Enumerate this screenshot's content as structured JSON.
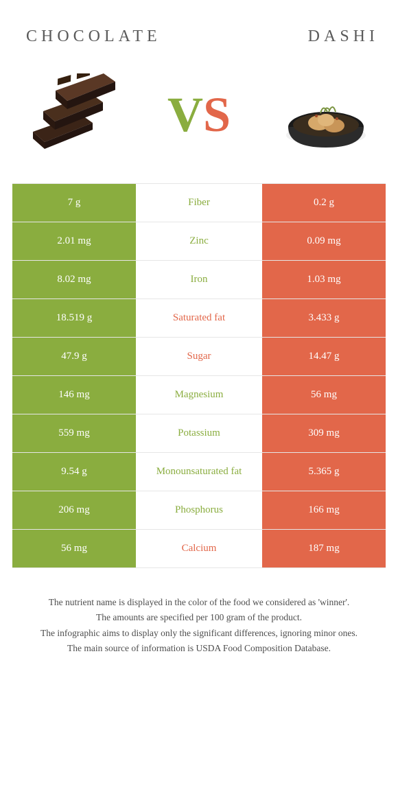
{
  "header": {
    "left_title": "CHOCOLATE",
    "right_title": "DASHI"
  },
  "vs": {
    "v": "V",
    "s": "S"
  },
  "colors": {
    "left_bg": "#8aad3f",
    "right_bg": "#e2674a",
    "left_text": "#ffffff",
    "right_text": "#ffffff",
    "border": "#e6e6e6"
  },
  "images": {
    "left_alt": "chocolate-image",
    "right_alt": "dashi-image"
  },
  "rows": [
    {
      "left": "7 g",
      "label": "Fiber",
      "right": "0.2 g",
      "winner": "left"
    },
    {
      "left": "2.01 mg",
      "label": "Zinc",
      "right": "0.09 mg",
      "winner": "left"
    },
    {
      "left": "8.02 mg",
      "label": "Iron",
      "right": "1.03 mg",
      "winner": "left"
    },
    {
      "left": "18.519 g",
      "label": "Saturated fat",
      "right": "3.433 g",
      "winner": "right"
    },
    {
      "left": "47.9 g",
      "label": "Sugar",
      "right": "14.47 g",
      "winner": "right"
    },
    {
      "left": "146 mg",
      "label": "Magnesium",
      "right": "56 mg",
      "winner": "left"
    },
    {
      "left": "559 mg",
      "label": "Potassium",
      "right": "309 mg",
      "winner": "left"
    },
    {
      "left": "9.54 g",
      "label": "Monounsaturated fat",
      "right": "5.365 g",
      "winner": "left"
    },
    {
      "left": "206 mg",
      "label": "Phosphorus",
      "right": "166 mg",
      "winner": "left"
    },
    {
      "left": "56 mg",
      "label": "Calcium",
      "right": "187 mg",
      "winner": "right"
    }
  ],
  "footnotes": [
    "The nutrient name is displayed in the color of the food we considered as 'winner'.",
    "The amounts are specified per 100 gram of the product.",
    "The infographic aims to display only the significant differences, ignoring minor ones.",
    "The main source of information is USDA Food Composition Database."
  ]
}
